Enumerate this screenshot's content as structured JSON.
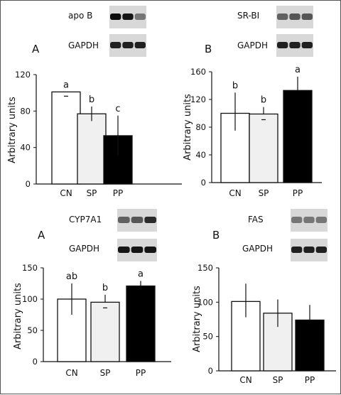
{
  "colors": {
    "CN": "#ffffff",
    "SP": "#f0f0f0",
    "PP": "#000000"
  },
  "blots": [
    {
      "panel": 0,
      "labels": [
        "apo B",
        "GAPDH"
      ],
      "icon": "western-blot-bands"
    },
    {
      "panel": 1,
      "labels": [
        "SR-BI",
        "GAPDH"
      ],
      "icon": "western-blot-bands"
    },
    {
      "panel": 2,
      "labels": [
        "CYP7A1",
        "GAPDH"
      ],
      "icon": "western-blot-bands"
    },
    {
      "panel": 3,
      "labels": [
        "FAS",
        "GAPDH"
      ],
      "icon": "western-blot-bands"
    }
  ],
  "chart_data": [
    {
      "type": "bar",
      "panel_letter": "A",
      "categories": [
        "CN",
        "SP",
        "PP"
      ],
      "values": [
        101,
        77,
        53
      ],
      "errors_up": [
        0,
        8,
        22
      ],
      "errors_down": [
        0,
        8,
        22
      ],
      "significance": [
        "a",
        "b",
        "c"
      ],
      "ylabel": "Arbitrary units",
      "ylim": [
        0,
        120
      ],
      "yticks": [
        0,
        40,
        80,
        120
      ],
      "grid": false
    },
    {
      "type": "bar",
      "panel_letter": "B",
      "categories": [
        "CN",
        "SP",
        "PP"
      ],
      "values": [
        100,
        99,
        133
      ],
      "errors_up": [
        30,
        10,
        20
      ],
      "errors_down": [
        25,
        0,
        0
      ],
      "significance": [
        "b",
        "b",
        "a"
      ],
      "ylabel": "Arbitrary units",
      "ylim": [
        0,
        160
      ],
      "yticks": [
        0,
        40,
        80,
        120,
        160
      ],
      "grid": false
    },
    {
      "type": "bar",
      "panel_letter": "A",
      "categories": [
        "CN",
        "SP",
        "PP"
      ],
      "values": [
        100,
        95,
        121
      ],
      "errors_up": [
        25,
        12,
        8
      ],
      "errors_down": [
        25,
        0,
        0
      ],
      "significance": [
        "ab",
        "b",
        "a"
      ],
      "ylabel": "Arbitrary units",
      "ylim": [
        0,
        150
      ],
      "yticks": [
        0,
        50,
        100,
        150
      ],
      "grid": false
    },
    {
      "type": "bar",
      "panel_letter": "B",
      "categories": [
        "CN",
        "SP",
        "PP"
      ],
      "values": [
        101,
        84,
        74
      ],
      "errors_up": [
        26,
        20,
        22
      ],
      "errors_down": [
        23,
        20,
        0
      ],
      "significance": [
        "",
        "",
        ""
      ],
      "ylabel": "Arbitrary units",
      "ylim": [
        0,
        150
      ],
      "yticks": [
        0,
        50,
        100,
        150
      ],
      "grid": false
    }
  ]
}
